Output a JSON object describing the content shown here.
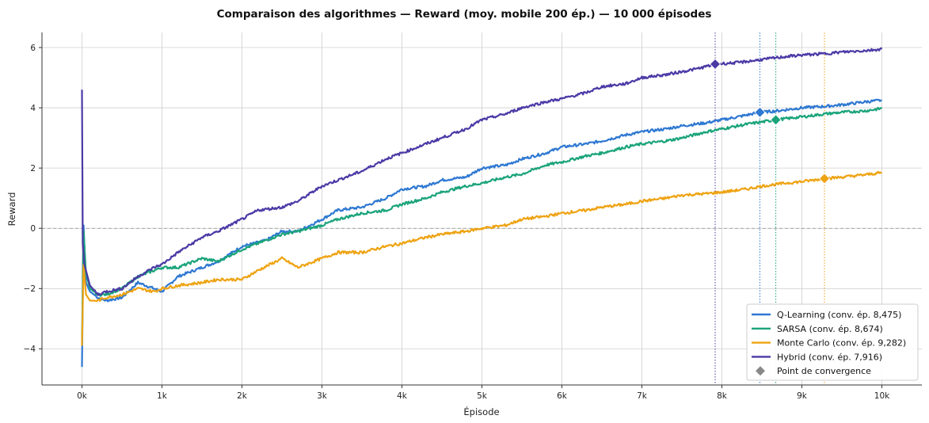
{
  "chart_data": {
    "type": "line",
    "title": "Comparaison des algorithmes — Reward (moy. mobile 200 ép.) — 10 000 épisodes",
    "xlabel": "Épisode",
    "ylabel": "Reward",
    "xlim": [
      -500,
      10500
    ],
    "ylim": [
      -5.2,
      6.5
    ],
    "x_ticks": [
      0,
      1000,
      2000,
      3000,
      4000,
      5000,
      6000,
      7000,
      8000,
      9000,
      10000
    ],
    "x_tick_labels": [
      "0k",
      "1k",
      "2k",
      "3k",
      "4k",
      "5k",
      "6k",
      "7k",
      "8k",
      "9k",
      "10k"
    ],
    "y_ticks": [
      -4,
      -2,
      0,
      2,
      4,
      6
    ],
    "y_tick_labels": [
      "−4",
      "−2",
      "0",
      "2",
      "4",
      "6"
    ],
    "grid": true,
    "zero_line": true,
    "legend_position": "lower-right",
    "series": [
      {
        "name": "Q-Learning (conv. ép. 8,475)",
        "color": "#2e78d2",
        "x": [
          0,
          20,
          50,
          100,
          200,
          300,
          500,
          700,
          900,
          1000,
          1200,
          1500,
          1700,
          2000,
          2300,
          2500,
          2700,
          3000,
          3200,
          3500,
          3800,
          4000,
          4300,
          4500,
          4800,
          5000,
          5300,
          5500,
          5800,
          6000,
          6300,
          6500,
          6800,
          7000,
          7300,
          7500,
          7800,
          8000,
          8200,
          8475,
          8700,
          9000,
          9300,
          9500,
          9800,
          10000
        ],
        "y": [
          -4.6,
          0.1,
          -1.8,
          -2.1,
          -2.3,
          -2.4,
          -2.3,
          -1.8,
          -2.0,
          -2.1,
          -1.6,
          -1.3,
          -1.1,
          -0.6,
          -0.4,
          -0.1,
          -0.1,
          0.3,
          0.6,
          0.7,
          1.0,
          1.3,
          1.4,
          1.6,
          1.7,
          2.0,
          2.1,
          2.3,
          2.5,
          2.7,
          2.8,
          2.9,
          3.1,
          3.2,
          3.3,
          3.4,
          3.5,
          3.6,
          3.7,
          3.85,
          3.9,
          4.0,
          4.05,
          4.1,
          4.2,
          4.25
        ]
      },
      {
        "name": "SARSA (conv. ép. 8,674)",
        "color": "#1aa37a",
        "x": [
          0,
          20,
          50,
          100,
          200,
          300,
          500,
          700,
          900,
          1000,
          1200,
          1500,
          1700,
          2000,
          2300,
          2500,
          2700,
          3000,
          3200,
          3500,
          3800,
          4000,
          4300,
          4500,
          4800,
          5000,
          5300,
          5500,
          5800,
          6000,
          6300,
          6500,
          6800,
          7000,
          7300,
          7500,
          7800,
          8000,
          8300,
          8674,
          9000,
          9300,
          9500,
          9800,
          10000
        ],
        "y": [
          -3.8,
          -0.1,
          -1.5,
          -2.0,
          -2.2,
          -2.2,
          -2.0,
          -1.6,
          -1.4,
          -1.3,
          -1.3,
          -1.0,
          -1.1,
          -0.7,
          -0.4,
          -0.2,
          -0.1,
          0.1,
          0.3,
          0.5,
          0.6,
          0.8,
          1.0,
          1.2,
          1.4,
          1.5,
          1.7,
          1.8,
          2.1,
          2.2,
          2.4,
          2.5,
          2.7,
          2.8,
          2.9,
          3.0,
          3.2,
          3.3,
          3.45,
          3.6,
          3.7,
          3.8,
          3.85,
          3.9,
          3.98
        ]
      },
      {
        "name": "Monte Carlo (conv. ép. 9,282)",
        "color": "#eea312",
        "x": [
          0,
          20,
          50,
          100,
          200,
          300,
          500,
          700,
          900,
          1000,
          1200,
          1500,
          1700,
          2000,
          2200,
          2500,
          2700,
          3000,
          3200,
          3500,
          3800,
          4000,
          4300,
          4500,
          4800,
          5000,
          5300,
          5500,
          5800,
          6000,
          6300,
          6500,
          6800,
          7000,
          7300,
          7500,
          7800,
          8000,
          8300,
          8500,
          8800,
          9000,
          9282,
          9500,
          9800,
          10000
        ],
        "y": [
          -3.9,
          -1.2,
          -2.2,
          -2.4,
          -2.4,
          -2.3,
          -2.2,
          -2.0,
          -2.1,
          -2.0,
          -1.9,
          -1.8,
          -1.7,
          -1.7,
          -1.4,
          -1.0,
          -1.3,
          -1.0,
          -0.8,
          -0.8,
          -0.6,
          -0.5,
          -0.3,
          -0.2,
          -0.1,
          0.0,
          0.1,
          0.3,
          0.4,
          0.5,
          0.6,
          0.7,
          0.8,
          0.9,
          1.0,
          1.1,
          1.15,
          1.2,
          1.3,
          1.4,
          1.5,
          1.55,
          1.65,
          1.7,
          1.78,
          1.85
        ]
      },
      {
        "name": "Hybrid (conv. ép. 7,916)",
        "color": "#4a3aa6",
        "x": [
          0,
          10,
          30,
          60,
          100,
          200,
          300,
          500,
          700,
          900,
          1000,
          1200,
          1500,
          1700,
          2000,
          2200,
          2500,
          2700,
          3000,
          3200,
          3500,
          3800,
          4000,
          4300,
          4500,
          4800,
          5000,
          5300,
          5500,
          5800,
          6000,
          6300,
          6500,
          6800,
          7000,
          7300,
          7500,
          7700,
          7916,
          8200,
          8500,
          8800,
          9000,
          9300,
          9500,
          9800,
          10000
        ],
        "y": [
          4.6,
          -0.5,
          -1.2,
          -1.5,
          -1.9,
          -2.2,
          -2.1,
          -2.0,
          -1.6,
          -1.3,
          -1.2,
          -0.8,
          -0.3,
          -0.1,
          0.3,
          0.6,
          0.7,
          0.9,
          1.4,
          1.6,
          1.9,
          2.3,
          2.5,
          2.8,
          3.0,
          3.3,
          3.6,
          3.8,
          4.0,
          4.2,
          4.3,
          4.5,
          4.7,
          4.8,
          5.0,
          5.1,
          5.2,
          5.3,
          5.45,
          5.5,
          5.6,
          5.7,
          5.75,
          5.8,
          5.85,
          5.9,
          5.95
        ]
      }
    ],
    "convergence": [
      {
        "series": "Q-Learning (conv. ép. 8,475)",
        "x": 8475,
        "y": 3.85,
        "color": "#2e78d2"
      },
      {
        "series": "SARSA (conv. ép. 8,674)",
        "x": 8674,
        "y": 3.6,
        "color": "#1aa37a"
      },
      {
        "series": "Monte Carlo (conv. ép. 9,282)",
        "x": 9282,
        "y": 1.65,
        "color": "#eea312"
      },
      {
        "series": "Hybrid (conv. ép. 7,916)",
        "x": 7916,
        "y": 5.45,
        "color": "#4a3aa6"
      }
    ],
    "legend": [
      {
        "label": "Q-Learning (conv. ép. 8,475)",
        "color": "#2e78d2",
        "marker": "line"
      },
      {
        "label": "SARSA (conv. ép. 8,674)",
        "color": "#1aa37a",
        "marker": "line"
      },
      {
        "label": "Monte Carlo (conv. ép. 9,282)",
        "color": "#eea312",
        "marker": "line"
      },
      {
        "label": "Hybrid (conv. ép. 7,916)",
        "color": "#4a3aa6",
        "marker": "line"
      },
      {
        "label": "Point de convergence",
        "color": "#888888",
        "marker": "diamond"
      }
    ]
  }
}
